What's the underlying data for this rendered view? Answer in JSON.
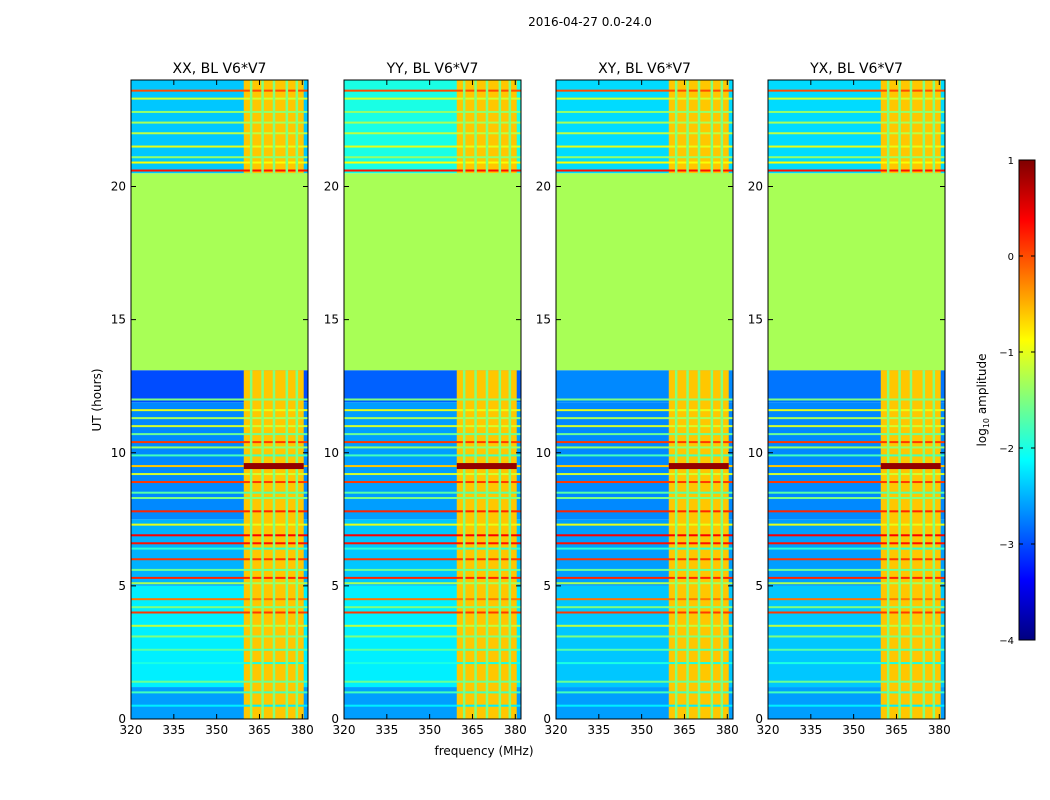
{
  "figure": {
    "suptitle": "2016-04-27 0.0-24.0",
    "xlabel": "frequency (MHz)",
    "ylabel": "UT (hours)",
    "colorbar_label": "log10 amplitude",
    "colorbar_label_base": "log",
    "colorbar_label_sub": "10",
    "colorbar_label_rest": " amplitude"
  },
  "colors": {
    "jet": [
      "#00007f",
      "#0000ff",
      "#007fff",
      "#00ffff",
      "#7fff7f",
      "#ffff00",
      "#ff7f00",
      "#ff0000",
      "#7f0000"
    ],
    "axes": "#000000",
    "background": "#ffffff"
  },
  "chart_data": [
    {
      "type": "heatmap",
      "title": "XX, BL V6*V7",
      "x_range": [
        320,
        382
      ],
      "y_range": [
        0,
        24
      ],
      "x_ticks": [
        320,
        335,
        350,
        365,
        380
      ],
      "x_tick_labels": [
        "320",
        "335",
        "350",
        "365",
        "380"
      ],
      "y_ticks": [
        0,
        5,
        10,
        15,
        20
      ],
      "y_tick_labels": [
        "0",
        "5",
        "10",
        "15",
        "20"
      ],
      "background_bands": [
        {
          "ut_start": 0.0,
          "ut_end": 1.2,
          "log_amp": -2.6
        },
        {
          "ut_start": 1.2,
          "ut_end": 5.0,
          "log_amp": -2.2
        },
        {
          "ut_start": 5.0,
          "ut_end": 7.5,
          "log_amp": -2.5
        },
        {
          "ut_start": 7.5,
          "ut_end": 11.9,
          "log_amp": -2.7
        },
        {
          "ut_start": 11.9,
          "ut_end": 13.1,
          "log_amp": -3.0
        },
        {
          "ut_start": 13.1,
          "ut_end": 20.5,
          "log_amp": -1.3
        },
        {
          "ut_start": 20.5,
          "ut_end": 24.0,
          "log_amp": -2.4
        }
      ],
      "active_band_mhz": [
        359.5,
        380.5
      ],
      "active_band_log_amp": -0.6,
      "gap_channels_mhz": [
        362.0,
        366.0,
        370.0,
        374.5,
        378.0
      ],
      "rfi_lines_ut": [
        0.5,
        1.0,
        1.4,
        2.1,
        2.6,
        3.1,
        3.5,
        4.0,
        4.2,
        4.5,
        5.1,
        5.3,
        5.6,
        6.0,
        6.4,
        6.6,
        6.9,
        7.3,
        7.8,
        8.3,
        8.5,
        8.9,
        9.2,
        9.5,
        9.9,
        10.2,
        10.4,
        10.7,
        11.0,
        11.3,
        11.6,
        12.0,
        20.6,
        20.9,
        21.1,
        21.5,
        22.0,
        22.4,
        22.8,
        23.3,
        23.6
      ],
      "rfi_log_amp": [
        -2.2,
        -1.8,
        -1.6,
        -2.0,
        -1.7,
        -1.5,
        -1.2,
        0.1,
        -1.5,
        -0.2,
        -1.3,
        0.2,
        -1.6,
        0.1,
        -1.9,
        0.3,
        0.4,
        -1.0,
        0.2,
        -1.5,
        -1.7,
        0.1,
        -1.1,
        -0.6,
        -1.8,
        -1.4,
        0.1,
        -1.6,
        -1.1,
        -1.3,
        -1.0,
        -1.5,
        0.3,
        -0.9,
        -1.4,
        -1.0,
        -1.2,
        -1.3,
        -1.4,
        -1.1,
        0.0
      ],
      "hot_spot": {
        "ut": 9.5,
        "log_amp": 0.9,
        "mhz_start": 359.5
      }
    },
    {
      "type": "heatmap",
      "title": "YY, BL V6*V7",
      "x_range": [
        320,
        382
      ],
      "y_range": [
        0,
        24
      ],
      "x_ticks": [
        320,
        335,
        350,
        365,
        380
      ],
      "x_tick_labels": [
        "320",
        "335",
        "350",
        "365",
        "380"
      ],
      "y_ticks": [
        0,
        5,
        10,
        15,
        20
      ],
      "y_tick_labels": [
        "0",
        "5",
        "10",
        "15",
        "20"
      ],
      "background_bands": [
        {
          "ut_start": 0.0,
          "ut_end": 1.2,
          "log_amp": -2.6
        },
        {
          "ut_start": 1.2,
          "ut_end": 5.0,
          "log_amp": -2.2
        },
        {
          "ut_start": 5.0,
          "ut_end": 7.5,
          "log_amp": -2.4
        },
        {
          "ut_start": 7.5,
          "ut_end": 11.9,
          "log_amp": -2.6
        },
        {
          "ut_start": 11.9,
          "ut_end": 13.1,
          "log_amp": -2.9
        },
        {
          "ut_start": 13.1,
          "ut_end": 20.5,
          "log_amp": -1.3
        },
        {
          "ut_start": 20.5,
          "ut_end": 24.0,
          "log_amp": -2.0
        }
      ],
      "active_band_mhz": [
        359.5,
        380.5
      ],
      "active_band_log_amp": -0.6,
      "gap_channels_mhz": [
        362.0,
        366.0,
        370.0,
        374.5,
        378.0
      ],
      "rfi_lines_ut": [
        0.5,
        1.0,
        1.4,
        2.1,
        2.6,
        3.1,
        3.5,
        4.0,
        4.2,
        4.5,
        5.1,
        5.3,
        5.6,
        6.0,
        6.4,
        6.6,
        6.9,
        7.3,
        7.8,
        8.3,
        8.5,
        8.9,
        9.2,
        9.5,
        9.9,
        10.2,
        10.4,
        10.7,
        11.0,
        11.3,
        11.6,
        12.0,
        20.6,
        20.9,
        21.1,
        21.5,
        22.0,
        22.4,
        22.8,
        23.3,
        23.6
      ],
      "rfi_log_amp": [
        -2.2,
        -1.8,
        -1.6,
        -2.0,
        -1.7,
        -1.5,
        -1.2,
        0.1,
        -1.5,
        -0.2,
        -1.3,
        0.2,
        -1.6,
        0.1,
        -1.9,
        0.3,
        0.4,
        -1.0,
        0.2,
        -1.5,
        -1.7,
        0.1,
        -1.1,
        -0.6,
        -1.8,
        -1.4,
        0.1,
        -1.6,
        -1.1,
        -1.3,
        -1.0,
        -1.5,
        0.3,
        -0.9,
        -1.4,
        -1.0,
        -1.2,
        -1.3,
        -1.4,
        -1.1,
        0.0
      ],
      "hot_spot": {
        "ut": 9.5,
        "log_amp": 0.9,
        "mhz_start": 359.5
      }
    },
    {
      "type": "heatmap",
      "title": "XY, BL V6*V7",
      "x_range": [
        320,
        382
      ],
      "y_range": [
        0,
        24
      ],
      "x_ticks": [
        320,
        335,
        350,
        365,
        380
      ],
      "x_tick_labels": [
        "320",
        "335",
        "350",
        "365",
        "380"
      ],
      "y_ticks": [
        0,
        5,
        10,
        15,
        20
      ],
      "y_tick_labels": [
        "0",
        "5",
        "10",
        "15",
        "20"
      ],
      "background_bands": [
        {
          "ut_start": 0.0,
          "ut_end": 1.2,
          "log_amp": -2.6
        },
        {
          "ut_start": 1.2,
          "ut_end": 5.0,
          "log_amp": -2.4
        },
        {
          "ut_start": 5.0,
          "ut_end": 7.5,
          "log_amp": -2.6
        },
        {
          "ut_start": 7.5,
          "ut_end": 11.9,
          "log_amp": -2.7
        },
        {
          "ut_start": 11.9,
          "ut_end": 13.1,
          "log_amp": -2.7
        },
        {
          "ut_start": 13.1,
          "ut_end": 20.5,
          "log_amp": -1.3
        },
        {
          "ut_start": 20.5,
          "ut_end": 24.0,
          "log_amp": -2.3
        }
      ],
      "active_band_mhz": [
        359.5,
        380.5
      ],
      "active_band_log_amp": -0.6,
      "gap_channels_mhz": [
        362.0,
        366.0,
        370.0,
        374.5,
        378.0
      ],
      "rfi_lines_ut": [
        0.5,
        1.0,
        1.4,
        2.1,
        2.6,
        3.1,
        3.5,
        4.0,
        4.2,
        4.5,
        5.1,
        5.3,
        5.6,
        6.0,
        6.4,
        6.6,
        6.9,
        7.3,
        7.8,
        8.3,
        8.5,
        8.9,
        9.2,
        9.5,
        9.9,
        10.2,
        10.4,
        10.7,
        11.0,
        11.3,
        11.6,
        12.0,
        20.6,
        20.9,
        21.1,
        21.5,
        22.0,
        22.4,
        22.8,
        23.3,
        23.6
      ],
      "rfi_log_amp": [
        -2.2,
        -1.8,
        -1.6,
        -2.0,
        -1.7,
        -1.5,
        -1.2,
        0.1,
        -1.5,
        -0.2,
        -1.3,
        0.2,
        -1.6,
        0.1,
        -1.9,
        0.3,
        0.4,
        -1.0,
        0.2,
        -1.5,
        -1.7,
        0.1,
        -1.1,
        -0.6,
        -1.8,
        -1.4,
        0.1,
        -1.6,
        -1.1,
        -1.3,
        -1.0,
        -1.5,
        0.3,
        -0.9,
        -1.4,
        -1.0,
        -1.2,
        -1.3,
        -1.4,
        -1.1,
        0.0
      ],
      "hot_spot": {
        "ut": 9.5,
        "log_amp": 0.9,
        "mhz_start": 359.5
      }
    },
    {
      "type": "heatmap",
      "title": "YX, BL V6*V7",
      "x_range": [
        320,
        382
      ],
      "y_range": [
        0,
        24
      ],
      "x_ticks": [
        320,
        335,
        350,
        365,
        380
      ],
      "x_tick_labels": [
        "320",
        "335",
        "350",
        "365",
        "380"
      ],
      "y_ticks": [
        0,
        5,
        10,
        15,
        20
      ],
      "y_tick_labels": [
        "0",
        "5",
        "10",
        "15",
        "20"
      ],
      "background_bands": [
        {
          "ut_start": 0.0,
          "ut_end": 1.2,
          "log_amp": -2.6
        },
        {
          "ut_start": 1.2,
          "ut_end": 5.0,
          "log_amp": -2.4
        },
        {
          "ut_start": 5.0,
          "ut_end": 7.5,
          "log_amp": -2.6
        },
        {
          "ut_start": 7.5,
          "ut_end": 11.9,
          "log_amp": -2.7
        },
        {
          "ut_start": 11.9,
          "ut_end": 13.1,
          "log_amp": -2.8
        },
        {
          "ut_start": 13.1,
          "ut_end": 20.5,
          "log_amp": -1.3
        },
        {
          "ut_start": 20.5,
          "ut_end": 24.0,
          "log_amp": -2.3
        }
      ],
      "active_band_mhz": [
        359.5,
        380.5
      ],
      "active_band_log_amp": -0.6,
      "gap_channels_mhz": [
        362.0,
        366.0,
        370.0,
        374.5,
        378.0
      ],
      "rfi_lines_ut": [
        0.5,
        1.0,
        1.4,
        2.1,
        2.6,
        3.1,
        3.5,
        4.0,
        4.2,
        4.5,
        5.1,
        5.3,
        5.6,
        6.0,
        6.4,
        6.6,
        6.9,
        7.3,
        7.8,
        8.3,
        8.5,
        8.9,
        9.2,
        9.5,
        9.9,
        10.2,
        10.4,
        10.7,
        11.0,
        11.3,
        11.6,
        12.0,
        20.6,
        20.9,
        21.1,
        21.5,
        22.0,
        22.4,
        22.8,
        23.3,
        23.6
      ],
      "rfi_log_amp": [
        -2.2,
        -1.8,
        -1.6,
        -2.0,
        -1.7,
        -1.5,
        -1.2,
        0.1,
        -1.5,
        -0.2,
        -1.3,
        0.2,
        -1.6,
        0.1,
        -1.9,
        0.3,
        0.4,
        -1.0,
        0.2,
        -1.5,
        -1.7,
        0.1,
        -1.1,
        -0.6,
        -1.8,
        -1.4,
        0.1,
        -1.6,
        -1.1,
        -1.3,
        -1.0,
        -1.5,
        0.3,
        -0.9,
        -1.4,
        -1.0,
        -1.2,
        -1.3,
        -1.4,
        -1.1,
        0.0
      ],
      "hot_spot": {
        "ut": 9.5,
        "log_amp": 0.9,
        "mhz_start": 359.5
      }
    }
  ],
  "colorbar": {
    "range": [
      -4,
      1
    ],
    "ticks": [
      1,
      0,
      -1,
      -2,
      -3,
      -4
    ],
    "tick_labels": [
      "1",
      "0",
      "−1",
      "−2",
      "−3",
      "−4"
    ]
  }
}
